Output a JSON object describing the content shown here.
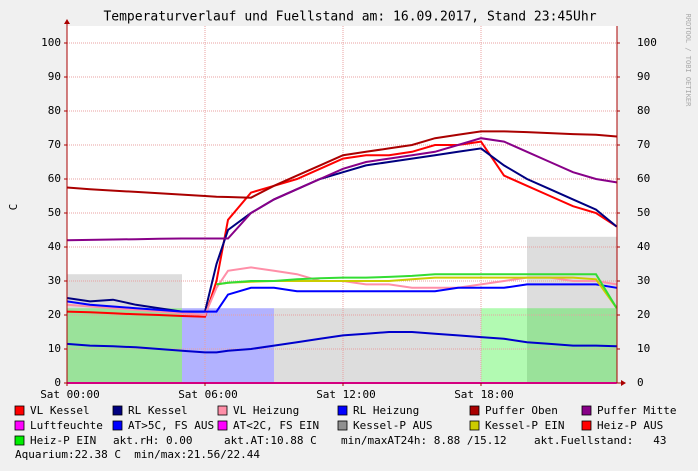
{
  "chart_data": {
    "type": "line",
    "title": "Temperaturverlauf und Fuellstand am: 16.09.2017, Stand 23:45Uhr",
    "y_label": "C",
    "watermark": "RRDTOOL / TOBI OETIKER",
    "x": [
      0,
      1,
      2,
      3,
      4,
      5,
      6,
      6.5,
      7,
      8,
      9,
      10,
      11,
      12,
      13,
      14,
      15,
      16,
      17,
      18,
      19,
      20,
      21,
      22,
      23,
      23.9
    ],
    "xlim": [
      0,
      24
    ],
    "xticks": [
      {
        "value": 0,
        "label": "Sat 00:00"
      },
      {
        "value": 6,
        "label": "Sat 06:00"
      },
      {
        "value": 12,
        "label": "Sat 12:00"
      },
      {
        "value": 18,
        "label": "Sat 18:00"
      }
    ],
    "ylim": [
      0,
      105
    ],
    "yticks": [
      0,
      10,
      20,
      30,
      40,
      50,
      60,
      70,
      80,
      90,
      100
    ],
    "grid": true,
    "series": [
      {
        "name": "VL Kessel",
        "color": "#ff0000",
        "style": "line",
        "values": [
          21,
          20.8,
          20.5,
          20.2,
          20,
          19.7,
          19.5,
          30,
          48,
          56,
          58,
          60,
          63,
          66,
          67,
          67,
          68,
          70,
          70,
          71,
          61,
          58,
          55,
          52,
          50,
          46
        ]
      },
      {
        "name": "RL Kessel",
        "color": "#000080",
        "style": "line",
        "values": [
          25,
          24,
          24.5,
          23,
          22,
          21,
          21,
          35,
          45,
          50,
          54,
          57,
          60,
          62,
          64,
          65,
          66,
          67,
          68,
          69,
          64,
          60,
          57,
          54,
          51,
          46
        ]
      },
      {
        "name": "VL Heizung",
        "color": "#ff8fa8",
        "style": "line",
        "values": [
          23,
          22.5,
          22,
          21.5,
          21,
          20.5,
          20,
          28,
          33,
          34,
          33,
          32,
          30,
          30,
          29,
          29,
          28,
          28,
          28,
          29,
          30,
          31,
          31,
          30,
          30,
          29
        ]
      },
      {
        "name": "RL Heizung",
        "color": "#0000ff",
        "style": "line",
        "values": [
          24,
          23,
          22.5,
          22,
          21.5,
          21,
          21,
          21,
          26,
          28,
          28,
          27,
          27,
          27,
          27,
          27,
          27,
          27,
          28,
          28,
          28,
          29,
          29,
          29,
          29,
          28
        ]
      },
      {
        "name": "Puffer Oben",
        "color": "#aa0000",
        "style": "line",
        "values": [
          57.5,
          57,
          56.6,
          56.2,
          55.8,
          55.4,
          55,
          54.8,
          54.7,
          54.5,
          58,
          61,
          64,
          67,
          68,
          69,
          70,
          72,
          73,
          74,
          74,
          73.8,
          73.5,
          73.2,
          73,
          72.5
        ]
      },
      {
        "name": "Puffer Mitte",
        "color": "#880088",
        "style": "line",
        "values": [
          42,
          42.1,
          42.2,
          42.3,
          42.4,
          42.5,
          42.5,
          42.5,
          42.5,
          50,
          54,
          57,
          60,
          63,
          65,
          66,
          67,
          68,
          70,
          72,
          71,
          68,
          65,
          62,
          60,
          59
        ]
      },
      {
        "name": "Luftfeuchte",
        "color": "#ff00ff",
        "style": "line",
        "values": [
          0,
          0,
          0,
          0,
          0,
          0,
          0,
          0,
          0,
          0,
          0,
          0,
          0,
          0,
          0,
          0,
          0,
          0,
          0,
          0,
          0,
          0,
          0,
          0,
          0,
          0
        ]
      },
      {
        "name": "AT>5C, FS AUS",
        "color": "#0000ff",
        "style": "area",
        "values": [
          0,
          0,
          0,
          0,
          0,
          22,
          22,
          22,
          22,
          22,
          0,
          0,
          0,
          0,
          0,
          0,
          0,
          0,
          0,
          0,
          0,
          0,
          0,
          0,
          0,
          0
        ]
      },
      {
        "name": "AT<2C, FS EIN",
        "color": "#ff00ff",
        "style": "area",
        "values": [
          0,
          0,
          0,
          0,
          0,
          0,
          0,
          0,
          0,
          0,
          0,
          0,
          0,
          0,
          0,
          0,
          0,
          0,
          0,
          0,
          0,
          0,
          0,
          0,
          0,
          0
        ]
      },
      {
        "name": "Kessel-P AUS",
        "color": "#909090",
        "style": "area",
        "values": [
          32,
          32,
          32,
          32,
          32,
          0,
          0,
          0,
          0,
          0,
          22,
          22,
          22,
          22,
          22,
          22,
          22,
          22,
          22,
          0,
          0,
          43,
          43,
          43,
          43,
          43
        ]
      },
      {
        "name": "Kessel-P EIN",
        "color": "#cccc00",
        "style": "line",
        "values": [
          null,
          null,
          null,
          null,
          null,
          null,
          null,
          29,
          29.5,
          29.8,
          30,
          30,
          30,
          30,
          30,
          30,
          30.5,
          31,
          31,
          31,
          31,
          31,
          31,
          31,
          30.5,
          22
        ]
      },
      {
        "name": "Heiz-P AUS",
        "color": "#ff0000",
        "style": "area",
        "values": [
          0,
          0,
          0,
          0,
          0,
          0,
          0,
          0,
          0,
          0,
          0,
          0,
          0,
          0,
          0,
          0,
          0,
          0,
          0,
          0,
          0,
          0,
          0,
          0,
          0,
          0
        ]
      },
      {
        "name": "Heiz-P EIN",
        "color": "#00ee00",
        "style": "area",
        "values": [
          22,
          22,
          22,
          22,
          22,
          0,
          0,
          0,
          0,
          0,
          0,
          0,
          0,
          0,
          0,
          0,
          0,
          0,
          0,
          22,
          22,
          22,
          22,
          22,
          22,
          22
        ]
      },
      {
        "color": "#33dd33",
        "style": "line",
        "values": [
          null,
          null,
          null,
          null,
          null,
          null,
          null,
          29,
          29.5,
          30,
          30,
          30.5,
          30.8,
          31,
          31,
          31.2,
          31.5,
          32,
          32,
          32,
          32,
          32,
          32,
          32,
          32,
          22
        ]
      },
      {
        "color": "#0000cc",
        "style": "line",
        "values": [
          11.5,
          11,
          10.8,
          10.5,
          10,
          9.5,
          9,
          9,
          9.5,
          10,
          11,
          12,
          13,
          14,
          14.5,
          15,
          15,
          14.5,
          14,
          13.5,
          13,
          12,
          11.5,
          11,
          11,
          10.8
        ]
      }
    ],
    "notes": [
      "akt.rH: 0.00",
      "akt.AT:10.88 C",
      "min/maxAT24h: 8.88 /15.12",
      "akt.Fuellstand:   43",
      "Aquarium:22.38 C  min/max:21.56/22.44"
    ]
  }
}
